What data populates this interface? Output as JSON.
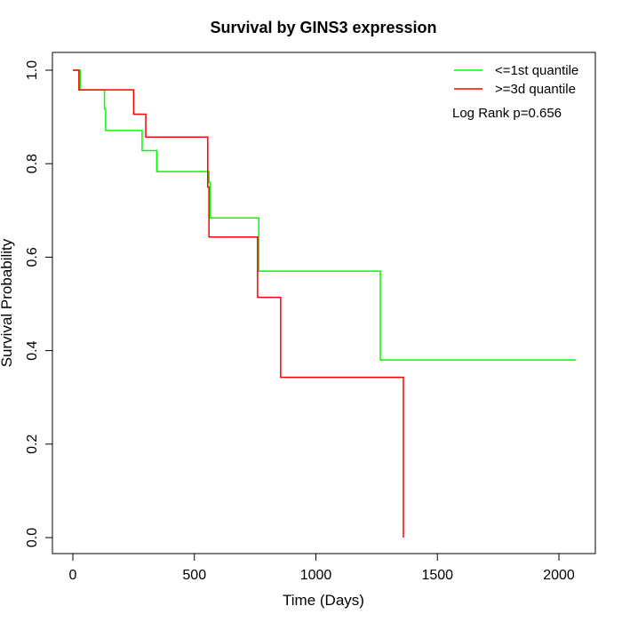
{
  "chart_data": {
    "type": "line",
    "step": true,
    "title": "Survival by GINS3 expression",
    "xlabel": "Time (Days)",
    "ylabel": "Survival Probability",
    "xlim": [
      0,
      2070
    ],
    "ylim": [
      0,
      1
    ],
    "x_ticks": [
      0,
      500,
      1000,
      1500,
      2000
    ],
    "y_ticks": [
      0.0,
      0.2,
      0.4,
      0.6,
      0.8,
      1.0
    ],
    "x_tick_labels": [
      "0",
      "500",
      "1000",
      "1500",
      "2000"
    ],
    "y_tick_labels": [
      "0.0",
      "0.2",
      "0.4",
      "0.6",
      "0.8",
      "1.0"
    ],
    "grid": false,
    "legend_position": "top-right",
    "annotation": "Log Rank p=0.656",
    "series": [
      {
        "name": "<=1st quantile",
        "color": "#00ff00",
        "x": [
          0,
          30,
          130,
          135,
          285,
          345,
          560,
          565,
          765,
          1265,
          2070
        ],
        "y": [
          1.0,
          0.958,
          0.917,
          0.871,
          0.828,
          0.783,
          0.76,
          0.684,
          0.57,
          0.38,
          0.38
        ]
      },
      {
        "name": ">=3d quantile",
        "color": "#ff0000",
        "x": [
          0,
          25,
          250,
          300,
          555,
          560,
          760,
          855,
          1360
        ],
        "y": [
          1.0,
          0.958,
          0.906,
          0.857,
          0.75,
          0.643,
          0.514,
          0.343,
          0.0
        ]
      }
    ]
  }
}
